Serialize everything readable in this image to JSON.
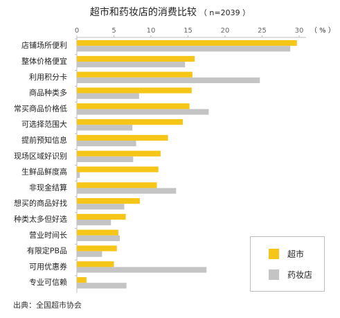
{
  "title": "超市和药妆店的消费比较",
  "subtitle": "（ n=2039 ）",
  "source": "出典：全国超市协会",
  "colors": {
    "supermarket": "#f5c518",
    "drugstore": "#c4c4c4",
    "axis": "#bdbdbd",
    "tick": "#666666"
  },
  "legend": {
    "supermarket": "超市",
    "drugstore": "药妆店"
  },
  "chart_data": {
    "type": "bar",
    "orientation": "horizontal",
    "unit": "（ % ）",
    "xlim": [
      0,
      30
    ],
    "xticks": [
      0,
      5,
      10,
      15,
      20,
      25,
      30
    ],
    "categories": [
      "店铺场所便利",
      "整体价格便宜",
      "利用积分卡",
      "商品种类多",
      "常买商品价格低",
      "可选择范围大",
      "提前预知信息",
      "现场区域好识别",
      "生鲜品鲜度高",
      "非现金结算",
      "想买的商品好找",
      "种类太多但好选",
      "营业时间长",
      "有限定PB品",
      "可用优惠券",
      "专业可信赖"
    ],
    "series": [
      {
        "name": "超市",
        "values": [
          29.7,
          15.9,
          15.6,
          15.5,
          15.2,
          14.3,
          12.3,
          11.3,
          11.0,
          10.8,
          8.5,
          6.6,
          5.6,
          5.4,
          5.0,
          1.3
        ]
      },
      {
        "name": "药妆店",
        "values": [
          28.8,
          14.6,
          24.7,
          8.4,
          17.8,
          7.5,
          8.0,
          7.6,
          0.4,
          13.4,
          6.4,
          4.6,
          5.8,
          3.4,
          17.5,
          6.7
        ]
      }
    ],
    "legend_position": "bottom-right",
    "grid": false
  }
}
